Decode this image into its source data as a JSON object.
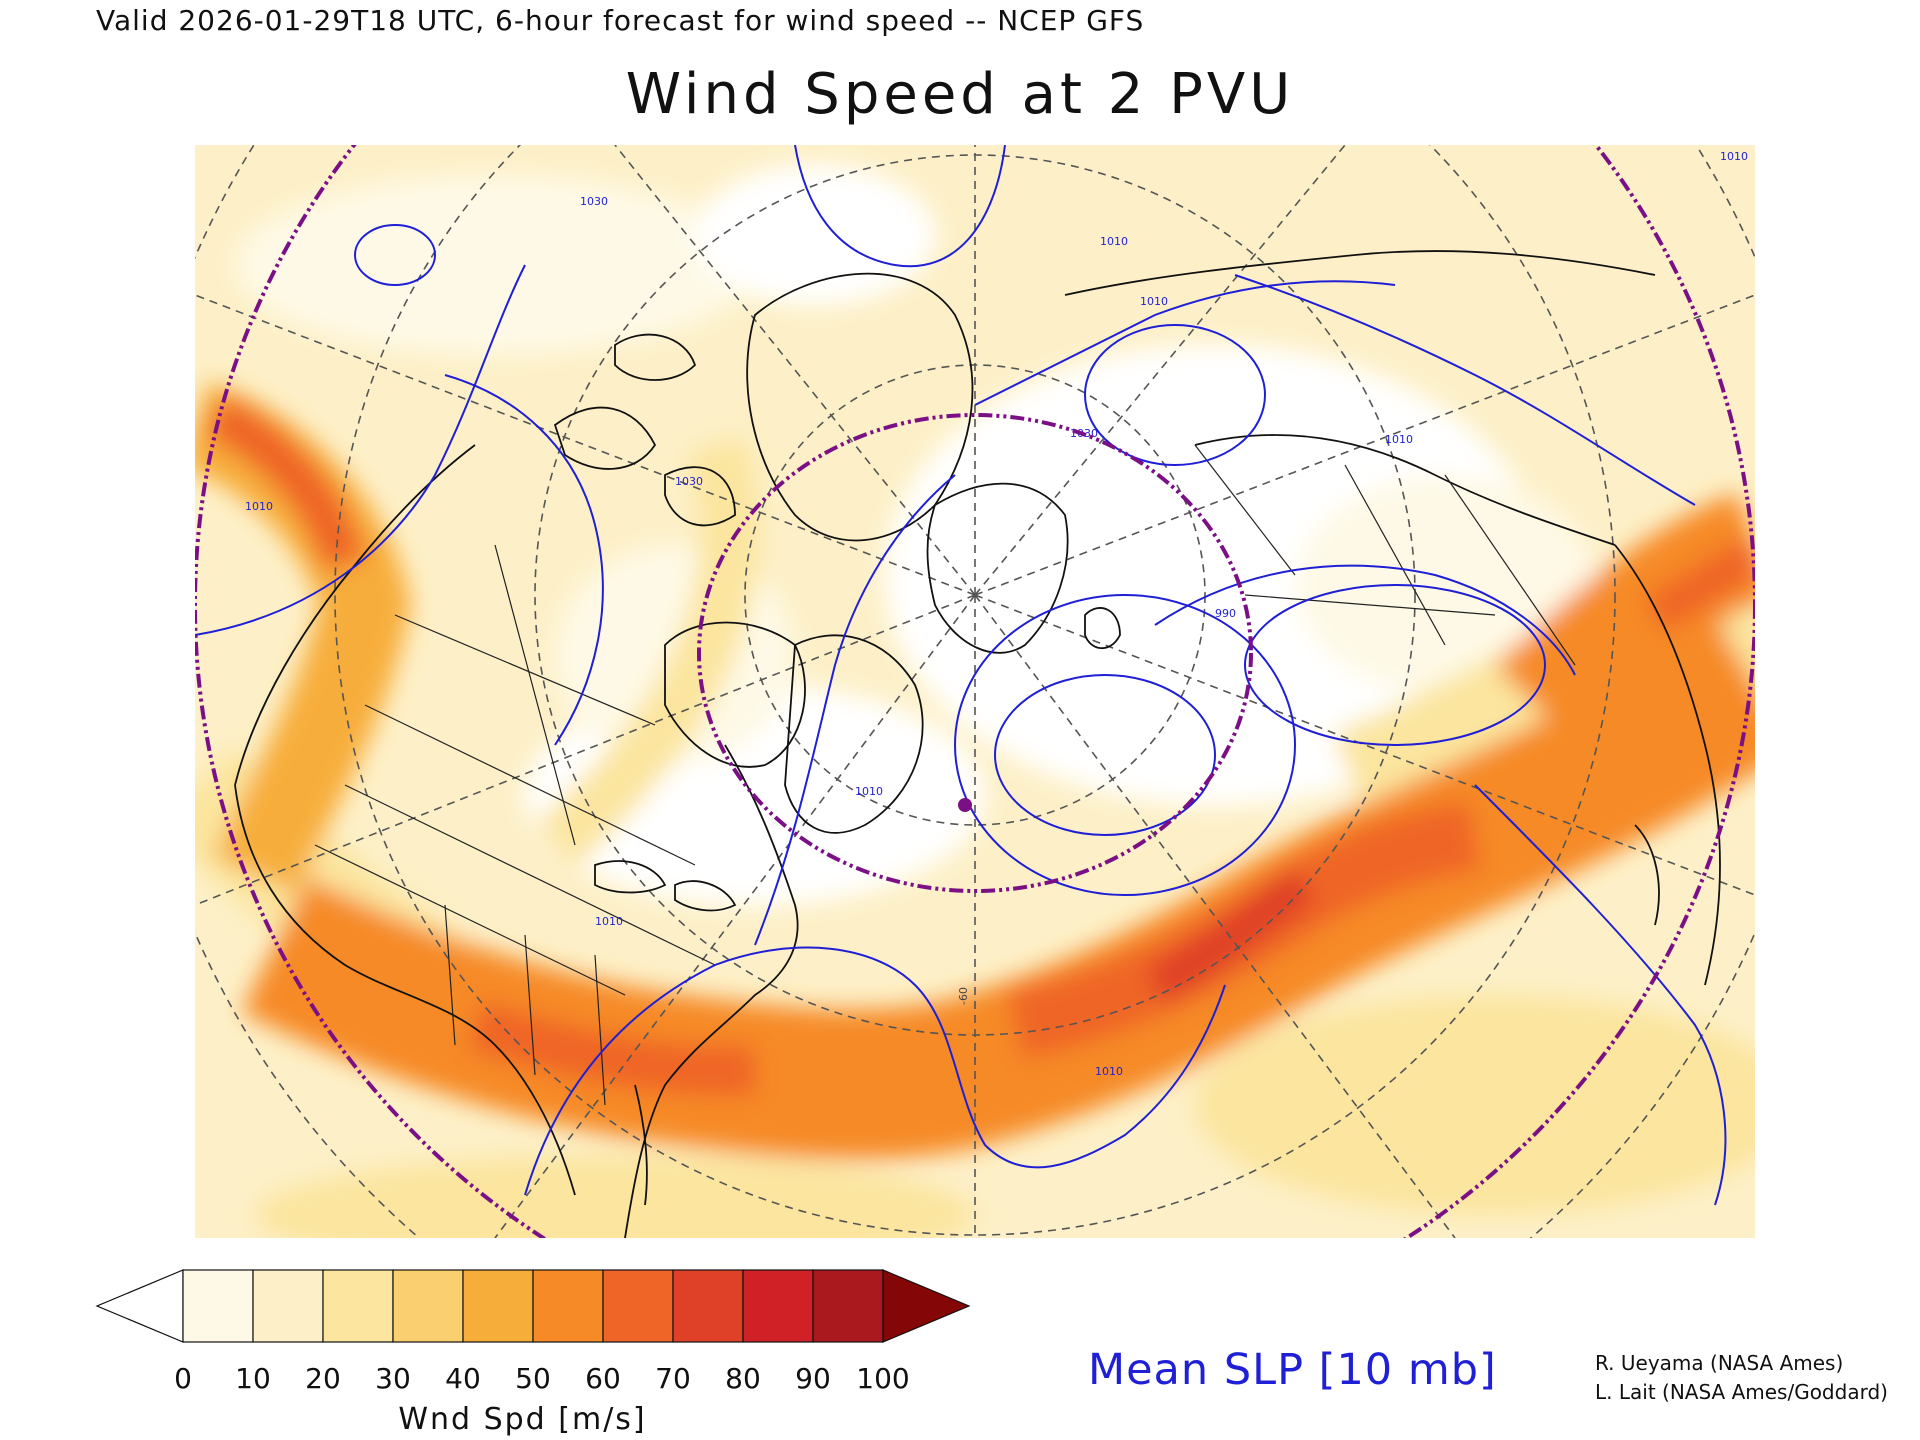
{
  "header": {
    "valid_line": "Valid 2026-01-29T18 UTC, 6-hour forecast for wind speed -- NCEP GFS",
    "title": "Wind Speed at 2 PVU"
  },
  "map": {
    "projection": "north polar stereographic",
    "fill_variable": "Wind speed at 2 PVU",
    "contour_variable": "Mean SLP",
    "contour_color": "#1f1fd6",
    "marker_color": "#7a0f86",
    "reference_circle_color": "#7a0f86",
    "contour_labels": [
      "1010",
      "1010",
      "1010",
      "1030",
      "1030",
      "1010",
      "990",
      "1010",
      "1010",
      "1010",
      "1030",
      "1010"
    ],
    "lon_label": "-60"
  },
  "colorbar": {
    "ticks": [
      "0",
      "10",
      "20",
      "30",
      "40",
      "50",
      "60",
      "70",
      "80",
      "90",
      "100"
    ],
    "colors": [
      "#ffffff",
      "#fef9e6",
      "#fdf0c8",
      "#fbe59f",
      "#f9cf6f",
      "#f7ad3a",
      "#f68a26",
      "#ef6527",
      "#df4028",
      "#cf2126",
      "#a9191e",
      "#840606"
    ],
    "label": "Wnd Spd [m/s]"
  },
  "legend": {
    "slp_label": "Mean SLP [10 mb]"
  },
  "credits": {
    "line1": "R. Ueyama (NASA Ames)",
    "line2": "L. Lait (NASA Ames/Goddard)"
  }
}
